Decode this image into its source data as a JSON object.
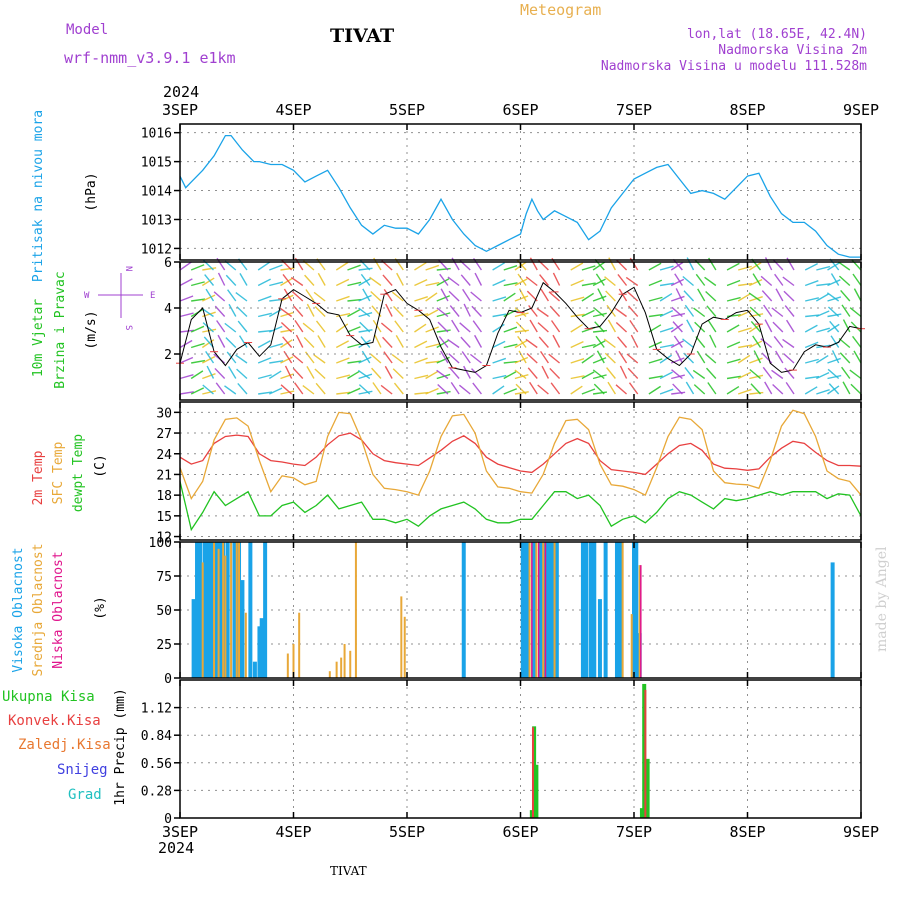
{
  "header": {
    "model_label": "Model",
    "model_name": "wrf-nmm_v3.9.1  e1km",
    "station": "TIVAT",
    "product": "Meteogram",
    "lonlat": "lon,lat (18.65E, 42.4N)",
    "elevation": "Nadmorska Visina 2m",
    "model_elevation": "Nadmorska Visina u modelu 111.528m",
    "watermark": "made by Angel",
    "footer_station": "TIVAT"
  },
  "colors": {
    "pressure": "#1aa3e8",
    "temp2m": "#e84040",
    "sfc": "#e8a838",
    "dewpt": "#22c322",
    "high_cloud": "#1aa3e8",
    "mid_cloud": "#e8a838",
    "low_cloud": "#e0148c",
    "purple_text": "#a040d0",
    "precip_total": "#22c322",
    "precip_conv": "#e84040",
    "precip_frz": "#e87830",
    "snow": "#4040e0",
    "graupel": "#20c0c0"
  },
  "chart_data": {
    "x_axis": {
      "year": "2024",
      "ticks": [
        "3SEP",
        "4SEP",
        "5SEP",
        "6SEP",
        "7SEP",
        "8SEP",
        "9SEP"
      ],
      "range_days": [
        0,
        6
      ]
    },
    "panels": [
      {
        "id": "pressure",
        "type": "line",
        "ylabel": [
          "Pritisak na nivou mora",
          "(hPa)"
        ],
        "ylim": [
          1011.6,
          1016.3
        ],
        "yticks": [
          1012,
          1013,
          1014,
          1015,
          1016
        ],
        "series": [
          {
            "name": "Pritisak na nivou mora",
            "x": [
              0,
              0.05,
              0.1,
              0.2,
              0.3,
              0.4,
              0.45,
              0.55,
              0.65,
              0.7,
              0.8,
              0.9,
              1.0,
              1.1,
              1.2,
              1.3,
              1.4,
              1.5,
              1.6,
              1.7,
              1.8,
              1.9,
              2.0,
              2.1,
              2.2,
              2.3,
              2.4,
              2.5,
              2.6,
              2.7,
              2.8,
              2.9,
              3.0,
              3.05,
              3.1,
              3.15,
              3.2,
              3.3,
              3.4,
              3.5,
              3.6,
              3.7,
              3.8,
              3.9,
              4.0,
              4.1,
              4.2,
              4.3,
              4.4,
              4.5,
              4.6,
              4.7,
              4.8,
              4.9,
              5.0,
              5.1,
              5.2,
              5.3,
              5.4,
              5.5,
              5.6,
              5.7,
              5.8,
              5.9,
              6.0
            ],
            "values": [
              1014.5,
              1014.1,
              1014.3,
              1014.7,
              1015.2,
              1015.9,
              1015.9,
              1015.4,
              1015.0,
              1015.0,
              1014.9,
              1014.9,
              1014.7,
              1014.3,
              1014.5,
              1014.7,
              1014.1,
              1013.4,
              1012.8,
              1012.5,
              1012.8,
              1012.7,
              1012.7,
              1012.5,
              1013.0,
              1013.7,
              1013.0,
              1012.5,
              1012.1,
              1011.9,
              1012.1,
              1012.3,
              1012.5,
              1013.2,
              1013.7,
              1013.3,
              1013.0,
              1013.3,
              1013.1,
              1012.9,
              1012.3,
              1012.6,
              1013.4,
              1013.9,
              1014.4,
              1014.6,
              1014.8,
              1014.9,
              1014.4,
              1013.9,
              1014.0,
              1013.9,
              1013.7,
              1014.1,
              1014.5,
              1014.6,
              1013.8,
              1013.2,
              1012.9,
              1012.9,
              1012.6,
              1012.1,
              1011.8,
              1011.7,
              1011.7
            ]
          }
        ]
      },
      {
        "id": "wind",
        "type": "line",
        "ylabel": [
          "10m Vjetar",
          "Brzina i Pravac",
          "(m/s)"
        ],
        "compass": {
          "n": "N",
          "s": "S",
          "e": "E",
          "w": "W"
        },
        "ylim": [
          0,
          6
        ],
        "yticks": [
          2,
          4,
          6
        ],
        "series": [
          {
            "name": "10m Vjetar",
            "x": [
              0,
              0.1,
              0.2,
              0.3,
              0.4,
              0.5,
              0.6,
              0.7,
              0.8,
              0.9,
              1.0,
              1.1,
              1.2,
              1.3,
              1.4,
              1.5,
              1.6,
              1.7,
              1.8,
              1.9,
              2.0,
              2.1,
              2.2,
              2.3,
              2.4,
              2.5,
              2.6,
              2.7,
              2.8,
              2.9,
              3.0,
              3.1,
              3.2,
              3.3,
              3.4,
              3.5,
              3.6,
              3.7,
              3.8,
              3.9,
              4.0,
              4.1,
              4.2,
              4.3,
              4.4,
              4.5,
              4.6,
              4.7,
              4.8,
              4.9,
              5.0,
              5.1,
              5.2,
              5.3,
              5.4,
              5.5,
              5.6,
              5.7,
              5.8,
              5.9,
              6.0
            ],
            "values": [
              1.6,
              3.5,
              4.0,
              2.1,
              1.5,
              2.2,
              2.5,
              1.9,
              2.4,
              4.4,
              4.8,
              4.5,
              4.2,
              3.8,
              3.7,
              2.8,
              2.4,
              2.5,
              4.6,
              4.8,
              4.2,
              3.9,
              3.5,
              2.3,
              1.4,
              1.3,
              1.2,
              1.5,
              2.9,
              3.9,
              3.8,
              4.0,
              5.1,
              4.7,
              4.2,
              3.6,
              3.1,
              3.2,
              3.8,
              4.6,
              4.9,
              3.8,
              2.2,
              1.8,
              1.5,
              2.0,
              3.3,
              3.6,
              3.5,
              3.8,
              3.9,
              3.3,
              1.6,
              1.2,
              1.3,
              2.1,
              2.4,
              2.3,
              2.5,
              3.2,
              3.1
            ]
          }
        ]
      },
      {
        "id": "temp",
        "type": "line",
        "ylabel": [
          "2m Temp",
          "SFC Temp",
          "dewpt Temp",
          "(C)"
        ],
        "ylim": [
          11.5,
          31.5
        ],
        "yticks": [
          12,
          15,
          18,
          21,
          24,
          27,
          30
        ],
        "series": [
          {
            "name": "2m Temp",
            "x": [
              0,
              0.1,
              0.2,
              0.3,
              0.4,
              0.5,
              0.6,
              0.7,
              0.8,
              0.9,
              1.0,
              1.1,
              1.2,
              1.3,
              1.4,
              1.5,
              1.6,
              1.7,
              1.8,
              1.9,
              2.0,
              2.1,
              2.2,
              2.3,
              2.4,
              2.5,
              2.6,
              2.7,
              2.8,
              2.9,
              3.0,
              3.1,
              3.2,
              3.3,
              3.4,
              3.5,
              3.6,
              3.7,
              3.8,
              3.9,
              4.0,
              4.1,
              4.2,
              4.3,
              4.4,
              4.5,
              4.6,
              4.7,
              4.8,
              4.9,
              5.0,
              5.1,
              5.2,
              5.3,
              5.4,
              5.5,
              5.6,
              5.7,
              5.8,
              5.9,
              6.0
            ],
            "values": [
              23.5,
              22.5,
              23.0,
              25.5,
              26.5,
              26.7,
              26.5,
              24.0,
              23.0,
              22.8,
              22.5,
              22.3,
              23.5,
              25.3,
              26.6,
              27.0,
              26.0,
              24.0,
              23.0,
              22.7,
              22.5,
              22.3,
              23.4,
              24.5,
              25.8,
              26.6,
              25.5,
              23.5,
              22.5,
              22.0,
              21.5,
              21.3,
              22.5,
              24.0,
              25.5,
              26.2,
              25.5,
              23.0,
              21.7,
              21.5,
              21.3,
              21.0,
              22.5,
              24.0,
              25.2,
              25.5,
              24.5,
              22.5,
              21.9,
              21.8,
              21.6,
              21.8,
              23.5,
              24.8,
              25.8,
              25.5,
              24.2,
              23.0,
              22.3,
              22.3,
              22.2
            ]
          },
          {
            "name": "SFC Temp",
            "x": [
              0,
              0.1,
              0.2,
              0.3,
              0.4,
              0.5,
              0.6,
              0.7,
              0.8,
              0.9,
              1.0,
              1.1,
              1.2,
              1.3,
              1.4,
              1.5,
              1.6,
              1.7,
              1.8,
              1.9,
              2.0,
              2.1,
              2.2,
              2.3,
              2.4,
              2.5,
              2.6,
              2.7,
              2.8,
              2.9,
              3.0,
              3.1,
              3.2,
              3.3,
              3.4,
              3.5,
              3.6,
              3.7,
              3.8,
              3.9,
              4.0,
              4.1,
              4.2,
              4.3,
              4.4,
              4.5,
              4.6,
              4.7,
              4.8,
              4.9,
              5.0,
              5.1,
              5.2,
              5.3,
              5.4,
              5.5,
              5.6,
              5.7,
              5.8,
              5.9,
              6.0
            ],
            "values": [
              22.0,
              17.5,
              20.0,
              26.0,
              29.0,
              29.2,
              28.0,
              23.0,
              18.5,
              20.8,
              20.5,
              19.5,
              20.0,
              26.5,
              30.0,
              29.8,
              26.0,
              21.0,
              19.0,
              18.8,
              18.5,
              18.0,
              21.5,
              26.5,
              29.5,
              29.7,
              27.0,
              21.5,
              19.2,
              19.0,
              18.5,
              18.3,
              21.0,
              25.5,
              28.8,
              29.0,
              27.5,
              22.5,
              19.5,
              19.3,
              18.8,
              18.0,
              22.0,
              26.5,
              29.3,
              29.0,
              27.5,
              21.5,
              19.8,
              19.6,
              19.5,
              19.0,
              23.0,
              28.0,
              30.3,
              29.8,
              26.5,
              21.5,
              20.4,
              20.0,
              18.0
            ]
          },
          {
            "name": "dewpt Temp",
            "x": [
              0,
              0.1,
              0.2,
              0.3,
              0.4,
              0.5,
              0.6,
              0.7,
              0.8,
              0.9,
              1.0,
              1.1,
              1.2,
              1.3,
              1.4,
              1.5,
              1.6,
              1.7,
              1.8,
              1.9,
              2.0,
              2.1,
              2.2,
              2.3,
              2.4,
              2.5,
              2.6,
              2.7,
              2.8,
              2.9,
              3.0,
              3.1,
              3.2,
              3.3,
              3.4,
              3.5,
              3.6,
              3.7,
              3.8,
              3.9,
              4.0,
              4.1,
              4.2,
              4.3,
              4.4,
              4.5,
              4.6,
              4.7,
              4.8,
              4.9,
              5.0,
              5.1,
              5.2,
              5.3,
              5.4,
              5.5,
              5.6,
              5.7,
              5.8,
              5.9,
              6.0
            ],
            "values": [
              20.0,
              13.0,
              15.5,
              18.5,
              16.5,
              17.5,
              18.5,
              15.0,
              15.0,
              16.5,
              17.0,
              15.5,
              16.5,
              18.0,
              16.0,
              16.5,
              17.0,
              14.5,
              14.5,
              14.0,
              14.5,
              13.5,
              15.0,
              16.0,
              16.5,
              17.0,
              16.0,
              14.5,
              14.0,
              14.0,
              14.5,
              14.5,
              16.5,
              18.5,
              18.5,
              17.5,
              18.0,
              16.5,
              13.5,
              14.5,
              15.0,
              14.0,
              15.5,
              17.5,
              18.5,
              18.0,
              17.0,
              16.0,
              17.5,
              17.2,
              17.5,
              18.0,
              18.5,
              18.0,
              18.5,
              18.5,
              18.5,
              17.5,
              18.2,
              18.0,
              15.0
            ]
          }
        ]
      },
      {
        "id": "cloud",
        "type": "bar",
        "ylabel": [
          "Visoka Oblacnost",
          "Srednja Oblacnost",
          "Niska Oblacnost",
          "(%)"
        ],
        "ylim": [
          0,
          100
        ],
        "yticks": [
          0,
          25,
          50,
          75,
          100
        ],
        "series": [
          {
            "name": "Visoka Oblacnost",
            "x": [
              0.12,
              0.15,
              0.18,
              0.22,
              0.25,
              0.28,
              0.32,
              0.35,
              0.38,
              0.42,
              0.48,
              0.52,
              0.55,
              0.62,
              0.66,
              0.7,
              0.72,
              0.75,
              2.5,
              3.02,
              3.04,
              3.06,
              3.12,
              3.18,
              3.22,
              3.25,
              3.28,
              3.32,
              3.55,
              3.58,
              3.62,
              3.65,
              3.7,
              3.75,
              3.85,
              3.88,
              4.0,
              4.02,
              4.05,
              5.75
            ],
            "values": [
              58,
              100,
              100,
              100,
              100,
              100,
              100,
              100,
              100,
              100,
              100,
              100,
              72,
              100,
              12,
              38,
              44,
              100,
              100,
              100,
              100,
              100,
              100,
              100,
              100,
              100,
              100,
              100,
              100,
              100,
              100,
              100,
              58,
              100,
              100,
              100,
              100,
              100,
              33,
              85
            ]
          },
          {
            "name": "Srednja Oblacnost",
            "x": [
              0.2,
              0.3,
              0.34,
              0.38,
              0.4,
              0.45,
              0.5,
              0.52,
              0.58,
              0.95,
              1.0,
              1.05,
              1.32,
              1.38,
              1.42,
              1.45,
              1.5,
              1.55,
              1.95,
              1.98,
              3.08,
              3.14,
              3.2,
              3.3,
              3.9,
              3.98,
              4.05
            ],
            "values": [
              85,
              100,
              95,
              100,
              90,
              100,
              100,
              100,
              48,
              18,
              25,
              48,
              5,
              12,
              15,
              25,
              20,
              100,
              60,
              45,
              100,
              100,
              100,
              100,
              100,
              47,
              83
            ]
          },
          {
            "name": "Niska Oblacnost",
            "x": [
              3.1,
              3.16,
              3.22,
              4.06
            ],
            "values": [
              100,
              100,
              100,
              83
            ]
          }
        ]
      },
      {
        "id": "precip",
        "type": "bar",
        "ylabel": [
          "1hr Precip (mm)"
        ],
        "legend": [
          "Ukupna Kisa",
          "Konvek.Kisa",
          "Zaledj.Kisa",
          "Snijeg",
          "Grad"
        ],
        "ylim": [
          0,
          1.4
        ],
        "yticks": [
          0,
          0.28,
          0.56,
          0.84,
          1.12
        ],
        "series": [
          {
            "name": "Ukupna Kisa",
            "x": [
              3.1,
              3.12,
              3.14,
              4.07,
              4.09,
              4.12
            ],
            "values": [
              0.08,
              0.93,
              0.54,
              0.1,
              1.36,
              0.6
            ]
          },
          {
            "name": "Konvek.Kisa",
            "x": [
              3.11,
              4.1
            ],
            "values": [
              0.92,
              1.3
            ]
          }
        ]
      }
    ]
  }
}
